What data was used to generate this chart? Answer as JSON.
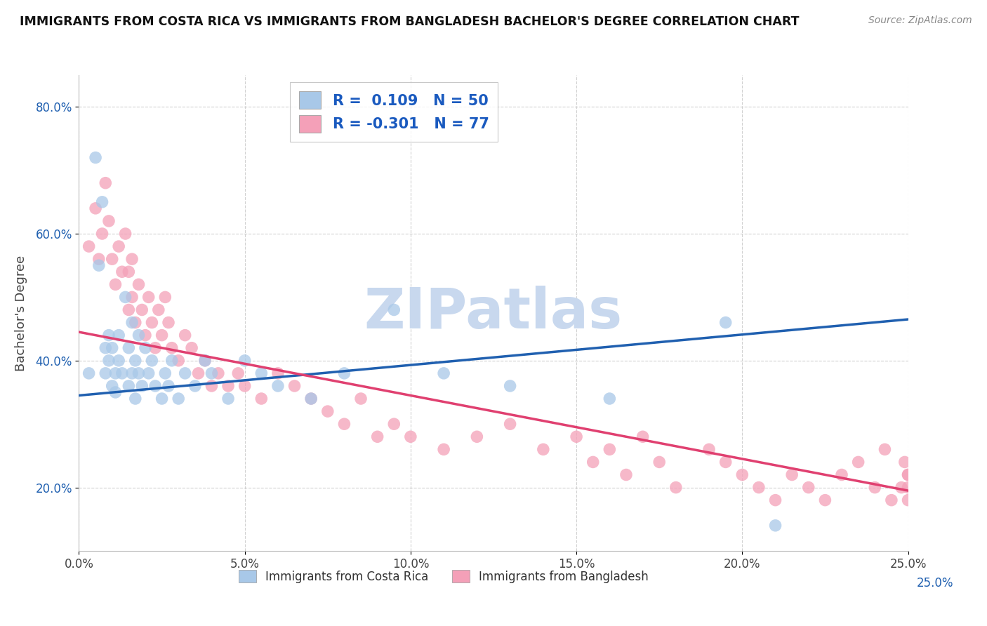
{
  "title": "IMMIGRANTS FROM COSTA RICA VS IMMIGRANTS FROM BANGLADESH BACHELOR'S DEGREE CORRELATION CHART",
  "source": "Source: ZipAtlas.com",
  "xlabel_blue": "Immigrants from Costa Rica",
  "xlabel_pink": "Immigrants from Bangladesh",
  "ylabel": "Bachelor's Degree",
  "R_blue": 0.109,
  "N_blue": 50,
  "R_pink": -0.301,
  "N_pink": 77,
  "xlim": [
    0.0,
    0.25
  ],
  "ylim": [
    0.1,
    0.85
  ],
  "xticks": [
    0.0,
    0.05,
    0.1,
    0.15,
    0.2,
    0.25
  ],
  "yticks": [
    0.2,
    0.4,
    0.6,
    0.8
  ],
  "ytick_labels": [
    "20.0%",
    "40.0%",
    "60.0%",
    "80.0%"
  ],
  "xtick_labels": [
    "0.0%",
    "5.0%",
    "10.0%",
    "15.0%",
    "20.0%",
    "25.0%"
  ],
  "blue_color": "#a8c8e8",
  "pink_color": "#f4a0b8",
  "blue_line_color": "#2060b0",
  "pink_line_color": "#e04070",
  "legend_R_color": "#1a5abf",
  "watermark_color": "#c8d8ee",
  "blue_line_x0": 0.0,
  "blue_line_y0": 0.345,
  "blue_line_x1": 0.25,
  "blue_line_y1": 0.465,
  "pink_line_x0": 0.0,
  "pink_line_y0": 0.445,
  "pink_line_x1": 0.25,
  "pink_line_y1": 0.195,
  "blue_scatter_x": [
    0.003,
    0.005,
    0.006,
    0.007,
    0.008,
    0.008,
    0.009,
    0.009,
    0.01,
    0.01,
    0.011,
    0.011,
    0.012,
    0.012,
    0.013,
    0.014,
    0.015,
    0.015,
    0.016,
    0.016,
    0.017,
    0.017,
    0.018,
    0.018,
    0.019,
    0.02,
    0.021,
    0.022,
    0.023,
    0.025,
    0.026,
    0.027,
    0.028,
    0.03,
    0.032,
    0.035,
    0.038,
    0.04,
    0.045,
    0.05,
    0.055,
    0.06,
    0.07,
    0.08,
    0.095,
    0.11,
    0.13,
    0.16,
    0.195,
    0.21
  ],
  "blue_scatter_y": [
    0.38,
    0.72,
    0.55,
    0.65,
    0.42,
    0.38,
    0.44,
    0.4,
    0.36,
    0.42,
    0.38,
    0.35,
    0.44,
    0.4,
    0.38,
    0.5,
    0.42,
    0.36,
    0.46,
    0.38,
    0.4,
    0.34,
    0.44,
    0.38,
    0.36,
    0.42,
    0.38,
    0.4,
    0.36,
    0.34,
    0.38,
    0.36,
    0.4,
    0.34,
    0.38,
    0.36,
    0.4,
    0.38,
    0.34,
    0.4,
    0.38,
    0.36,
    0.34,
    0.38,
    0.48,
    0.38,
    0.36,
    0.34,
    0.46,
    0.14
  ],
  "pink_scatter_x": [
    0.003,
    0.005,
    0.006,
    0.007,
    0.008,
    0.009,
    0.01,
    0.011,
    0.012,
    0.013,
    0.014,
    0.015,
    0.015,
    0.016,
    0.016,
    0.017,
    0.018,
    0.019,
    0.02,
    0.021,
    0.022,
    0.023,
    0.024,
    0.025,
    0.026,
    0.027,
    0.028,
    0.03,
    0.032,
    0.034,
    0.036,
    0.038,
    0.04,
    0.042,
    0.045,
    0.048,
    0.05,
    0.055,
    0.06,
    0.065,
    0.07,
    0.075,
    0.08,
    0.085,
    0.09,
    0.095,
    0.1,
    0.11,
    0.12,
    0.13,
    0.14,
    0.15,
    0.155,
    0.16,
    0.165,
    0.17,
    0.175,
    0.18,
    0.19,
    0.195,
    0.2,
    0.205,
    0.21,
    0.215,
    0.22,
    0.225,
    0.23,
    0.235,
    0.24,
    0.243,
    0.245,
    0.248,
    0.249,
    0.25,
    0.25,
    0.25,
    0.25
  ],
  "pink_scatter_y": [
    0.58,
    0.64,
    0.56,
    0.6,
    0.68,
    0.62,
    0.56,
    0.52,
    0.58,
    0.54,
    0.6,
    0.48,
    0.54,
    0.5,
    0.56,
    0.46,
    0.52,
    0.48,
    0.44,
    0.5,
    0.46,
    0.42,
    0.48,
    0.44,
    0.5,
    0.46,
    0.42,
    0.4,
    0.44,
    0.42,
    0.38,
    0.4,
    0.36,
    0.38,
    0.36,
    0.38,
    0.36,
    0.34,
    0.38,
    0.36,
    0.34,
    0.32,
    0.3,
    0.34,
    0.28,
    0.3,
    0.28,
    0.26,
    0.28,
    0.3,
    0.26,
    0.28,
    0.24,
    0.26,
    0.22,
    0.28,
    0.24,
    0.2,
    0.26,
    0.24,
    0.22,
    0.2,
    0.18,
    0.22,
    0.2,
    0.18,
    0.22,
    0.24,
    0.2,
    0.26,
    0.18,
    0.2,
    0.24,
    0.22,
    0.18,
    0.2,
    0.22
  ]
}
